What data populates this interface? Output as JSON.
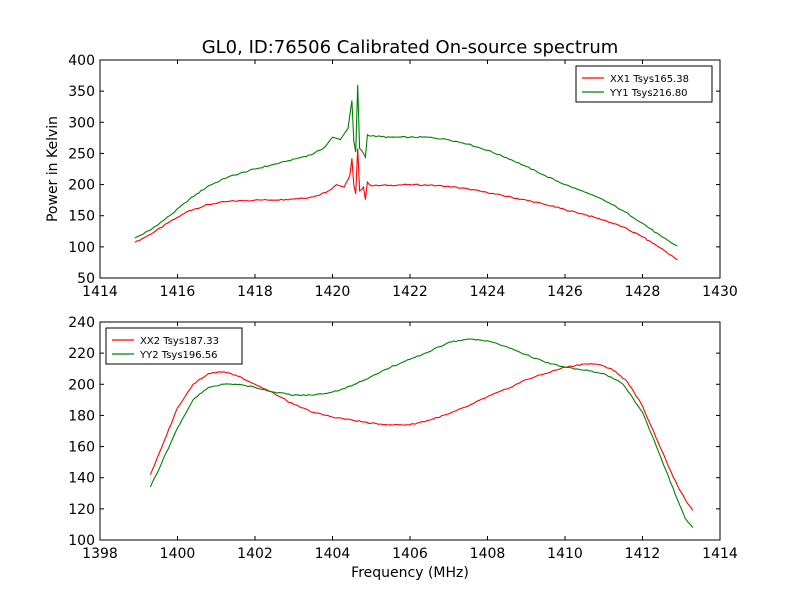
{
  "figure": {
    "title": "GL0, ID:76506 Calibrated On-source spectrum",
    "xlabel": "Frequency (MHz)",
    "ylabel": "Power in Kelvin"
  },
  "colors": {
    "red": "#ff0000",
    "green": "#008000"
  },
  "chart_data": [
    {
      "type": "line",
      "title": "GL0, ID:76506 Calibrated On-source spectrum",
      "xlabel": "",
      "ylabel": "Power in Kelvin",
      "xlim": [
        1414,
        1430
      ],
      "ylim": [
        50,
        400
      ],
      "xticks": [
        1414,
        1416,
        1418,
        1420,
        1422,
        1424,
        1426,
        1428,
        1430
      ],
      "yticks": [
        50,
        100,
        150,
        200,
        250,
        300,
        350,
        400
      ],
      "grid": false,
      "legend": "top-right",
      "series": [
        {
          "name": "XX1 Tsys165.38",
          "color": "red",
          "points": [
            [
              1414.9,
              107
            ],
            [
              1415.3,
              120
            ],
            [
              1415.8,
              140
            ],
            [
              1416.3,
              158
            ],
            [
              1416.8,
              168
            ],
            [
              1417.3,
              173
            ],
            [
              1418.0,
              175
            ],
            [
              1418.8,
              176
            ],
            [
              1419.5,
              180
            ],
            [
              1419.9,
              190
            ],
            [
              1420.1,
              200
            ],
            [
              1420.3,
              196
            ],
            [
              1420.45,
              215
            ],
            [
              1420.5,
              242
            ],
            [
              1420.55,
              200
            ],
            [
              1420.6,
              185
            ],
            [
              1420.65,
              258
            ],
            [
              1420.7,
              190
            ],
            [
              1420.8,
              196
            ],
            [
              1420.85,
              176
            ],
            [
              1420.9,
              204
            ],
            [
              1421.0,
              198
            ],
            [
              1421.5,
              199
            ],
            [
              1422.0,
              200
            ],
            [
              1422.5,
              199
            ],
            [
              1423.0,
              197
            ],
            [
              1423.5,
              193
            ],
            [
              1424.0,
              187
            ],
            [
              1424.5,
              181
            ],
            [
              1425.0,
              175
            ],
            [
              1425.5,
              168
            ],
            [
              1426.0,
              160
            ],
            [
              1426.5,
              152
            ],
            [
              1427.0,
              143
            ],
            [
              1427.5,
              132
            ],
            [
              1428.0,
              116
            ],
            [
              1428.5,
              97
            ],
            [
              1428.9,
              79
            ]
          ]
        },
        {
          "name": "YY1 Tsys216.80",
          "color": "green",
          "points": [
            [
              1414.9,
              114
            ],
            [
              1415.3,
              127
            ],
            [
              1415.8,
              150
            ],
            [
              1416.3,
              176
            ],
            [
              1416.8,
              198
            ],
            [
              1417.3,
              212
            ],
            [
              1418.0,
              225
            ],
            [
              1418.8,
              237
            ],
            [
              1419.5,
              249
            ],
            [
              1419.8,
              260
            ],
            [
              1420.0,
              276
            ],
            [
              1420.2,
              272
            ],
            [
              1420.4,
              290
            ],
            [
              1420.5,
              335
            ],
            [
              1420.55,
              270
            ],
            [
              1420.6,
              252
            ],
            [
              1420.65,
              360
            ],
            [
              1420.7,
              258
            ],
            [
              1420.8,
              250
            ],
            [
              1420.85,
              244
            ],
            [
              1420.9,
              280
            ],
            [
              1421.0,
              278
            ],
            [
              1421.5,
              276
            ],
            [
              1422.0,
              276
            ],
            [
              1422.5,
              276
            ],
            [
              1423.0,
              272
            ],
            [
              1423.5,
              265
            ],
            [
              1424.0,
              255
            ],
            [
              1424.5,
              243
            ],
            [
              1425.0,
              229
            ],
            [
              1425.5,
              214
            ],
            [
              1426.0,
              200
            ],
            [
              1426.5,
              188
            ],
            [
              1427.0,
              175
            ],
            [
              1427.5,
              158
            ],
            [
              1428.0,
              138
            ],
            [
              1428.5,
              116
            ],
            [
              1428.9,
              101
            ]
          ]
        }
      ]
    },
    {
      "type": "line",
      "title": "",
      "xlabel": "Frequency (MHz)",
      "ylabel": "",
      "xlim": [
        1398,
        1414
      ],
      "ylim": [
        100,
        240
      ],
      "xticks": [
        1398,
        1400,
        1402,
        1404,
        1406,
        1408,
        1410,
        1412,
        1414
      ],
      "yticks": [
        100,
        120,
        140,
        160,
        180,
        200,
        220,
        240
      ],
      "grid": false,
      "legend": "top-left",
      "series": [
        {
          "name": "XX2 Tsys187.33",
          "color": "red",
          "points": [
            [
              1399.3,
              142
            ],
            [
              1399.6,
              160
            ],
            [
              1400.0,
              185
            ],
            [
              1400.4,
              200
            ],
            [
              1400.8,
              207
            ],
            [
              1401.2,
              208
            ],
            [
              1401.6,
              205
            ],
            [
              1402.0,
              200
            ],
            [
              1402.5,
              194
            ],
            [
              1403.0,
              187
            ],
            [
              1403.5,
              182
            ],
            [
              1404.0,
              179
            ],
            [
              1404.5,
              177
            ],
            [
              1405.0,
              175
            ],
            [
              1405.5,
              174
            ],
            [
              1406.0,
              174
            ],
            [
              1406.5,
              177
            ],
            [
              1407.0,
              181
            ],
            [
              1407.5,
              186
            ],
            [
              1408.0,
              192
            ],
            [
              1408.5,
              197
            ],
            [
              1409.0,
              203
            ],
            [
              1409.5,
              207
            ],
            [
              1410.0,
              211
            ],
            [
              1410.5,
              213
            ],
            [
              1410.8,
              213
            ],
            [
              1411.2,
              210
            ],
            [
              1411.6,
              202
            ],
            [
              1412.0,
              186
            ],
            [
              1412.4,
              163
            ],
            [
              1412.8,
              140
            ],
            [
              1413.1,
              126
            ],
            [
              1413.3,
              119
            ]
          ]
        },
        {
          "name": "YY2 Tsys196.56",
          "color": "green",
          "points": [
            [
              1399.3,
              134
            ],
            [
              1399.6,
              150
            ],
            [
              1400.0,
              172
            ],
            [
              1400.4,
              190
            ],
            [
              1400.8,
              198
            ],
            [
              1401.2,
              200
            ],
            [
              1401.6,
              200
            ],
            [
              1402.0,
              198
            ],
            [
              1402.5,
              195
            ],
            [
              1403.0,
              193
            ],
            [
              1403.5,
              193
            ],
            [
              1404.0,
              195
            ],
            [
              1404.5,
              199
            ],
            [
              1405.0,
              205
            ],
            [
              1405.5,
              211
            ],
            [
              1406.0,
              216
            ],
            [
              1406.5,
              221
            ],
            [
              1407.0,
              227
            ],
            [
              1407.5,
              229
            ],
            [
              1408.0,
              228
            ],
            [
              1408.5,
              224
            ],
            [
              1409.0,
              219
            ],
            [
              1409.5,
              214
            ],
            [
              1410.0,
              211
            ],
            [
              1410.5,
              209
            ],
            [
              1411.0,
              207
            ],
            [
              1411.5,
              200
            ],
            [
              1412.0,
              182
            ],
            [
              1412.3,
              164
            ],
            [
              1412.6,
              145
            ],
            [
              1412.9,
              126
            ],
            [
              1413.1,
              114
            ],
            [
              1413.3,
              108
            ]
          ]
        }
      ]
    }
  ]
}
